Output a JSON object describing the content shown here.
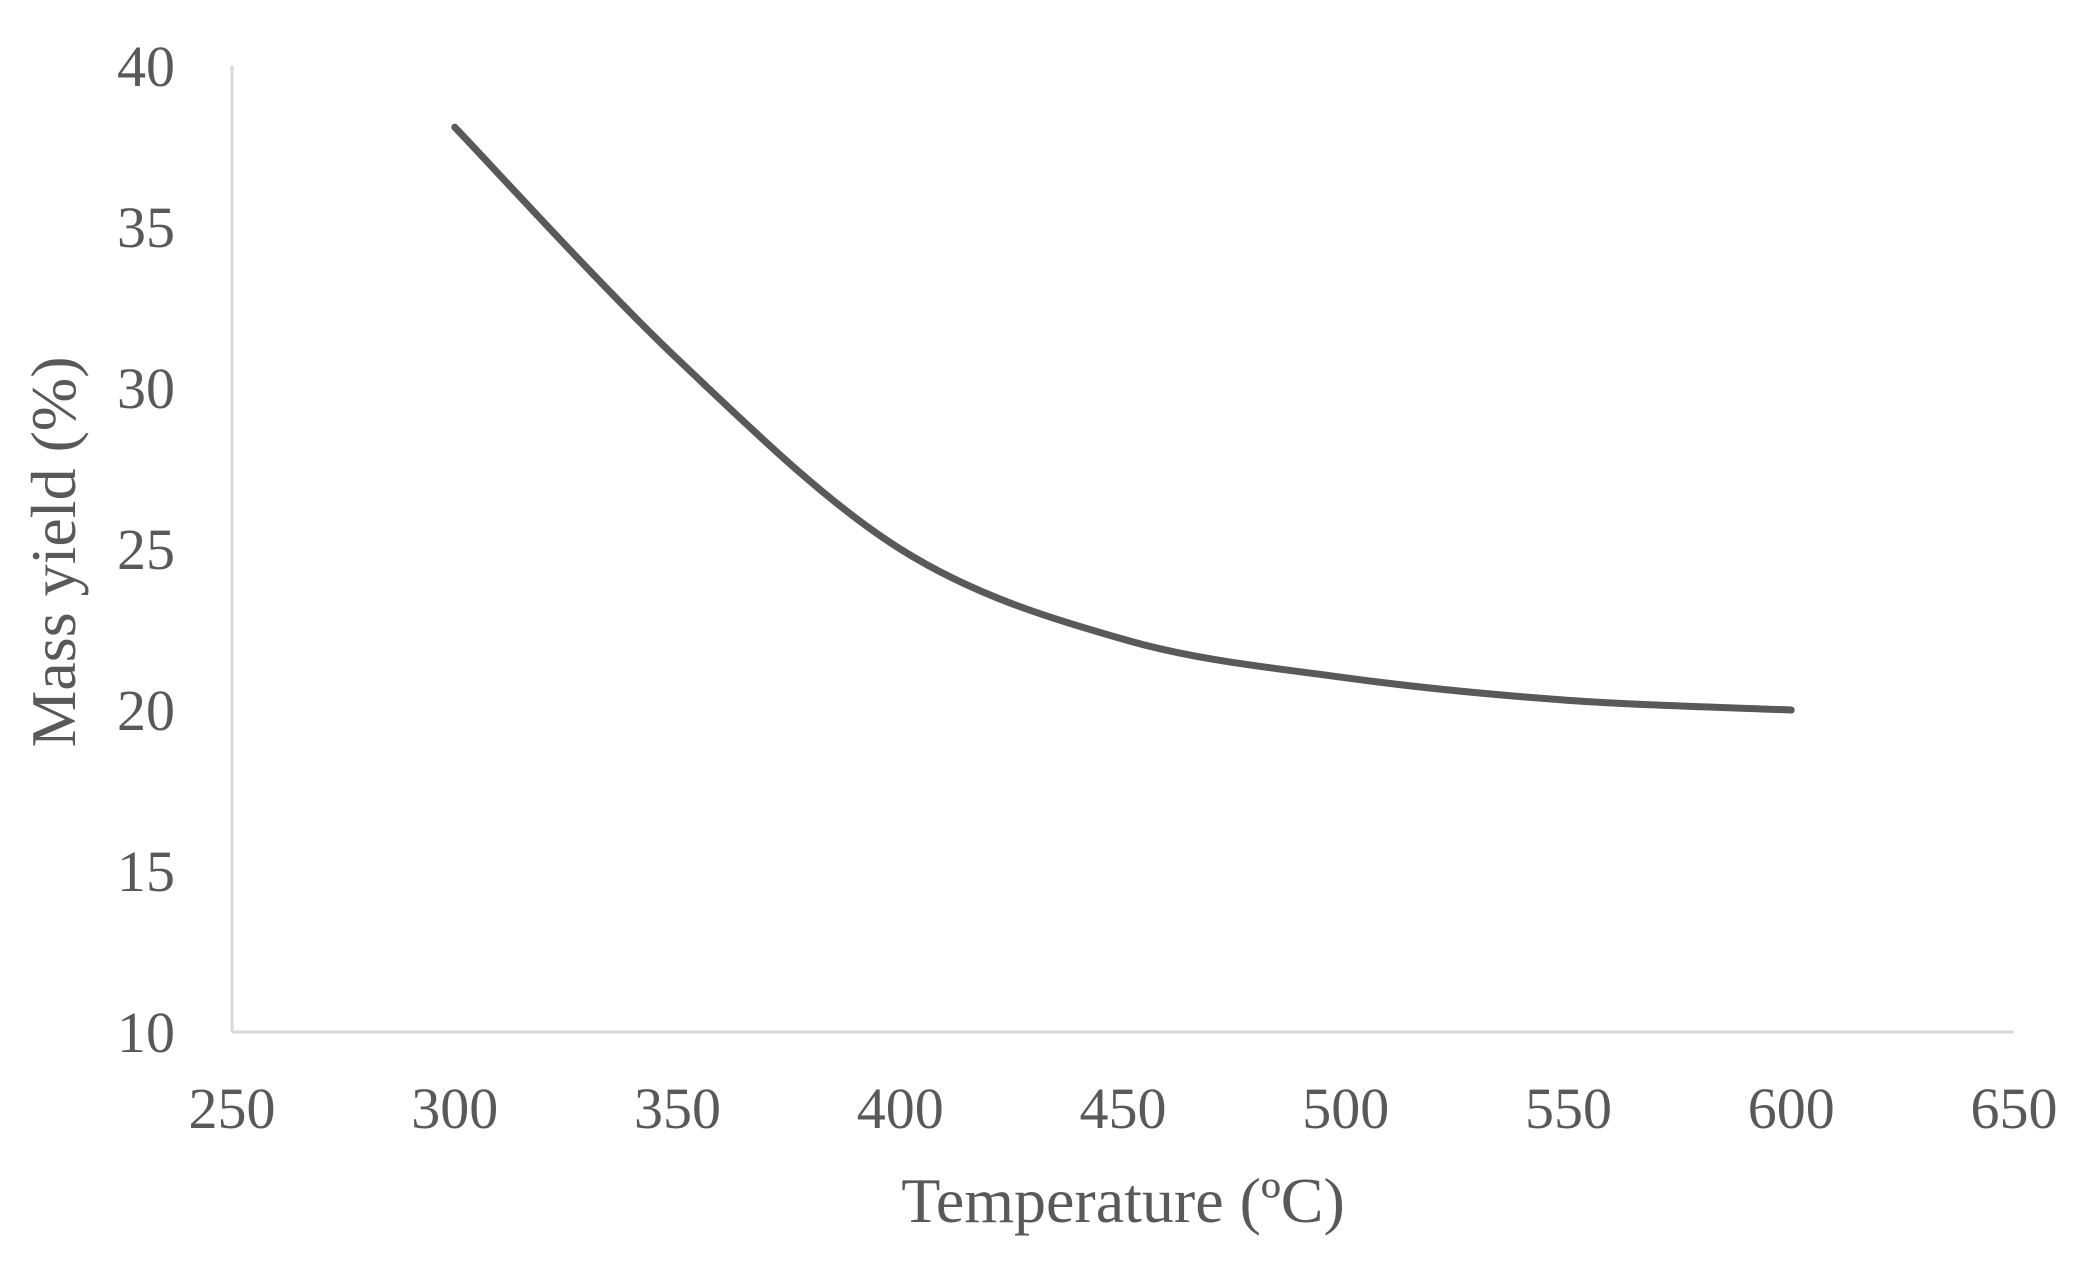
{
  "chart_data": {
    "type": "line",
    "title": "",
    "xlabel": "Temperature (ºC)",
    "ylabel": "Mass yield (%)",
    "xlim": [
      250,
      650
    ],
    "ylim": [
      10,
      40
    ],
    "x_ticks": [
      "250",
      "300",
      "350",
      "400",
      "450",
      "500",
      "550",
      "600",
      "650"
    ],
    "y_ticks": [
      "10",
      "15",
      "20",
      "25",
      "30",
      "35",
      "40"
    ],
    "grid": false,
    "legend": "none",
    "series": [
      {
        "color": "#595959",
        "x": [
          300,
          350,
          400,
          450,
          500,
          550,
          600
        ],
        "y": [
          38.1,
          30.9,
          25.0,
          22.2,
          21.0,
          20.3,
          20.0
        ]
      }
    ],
    "axis_color": "#d9d9d9"
  }
}
